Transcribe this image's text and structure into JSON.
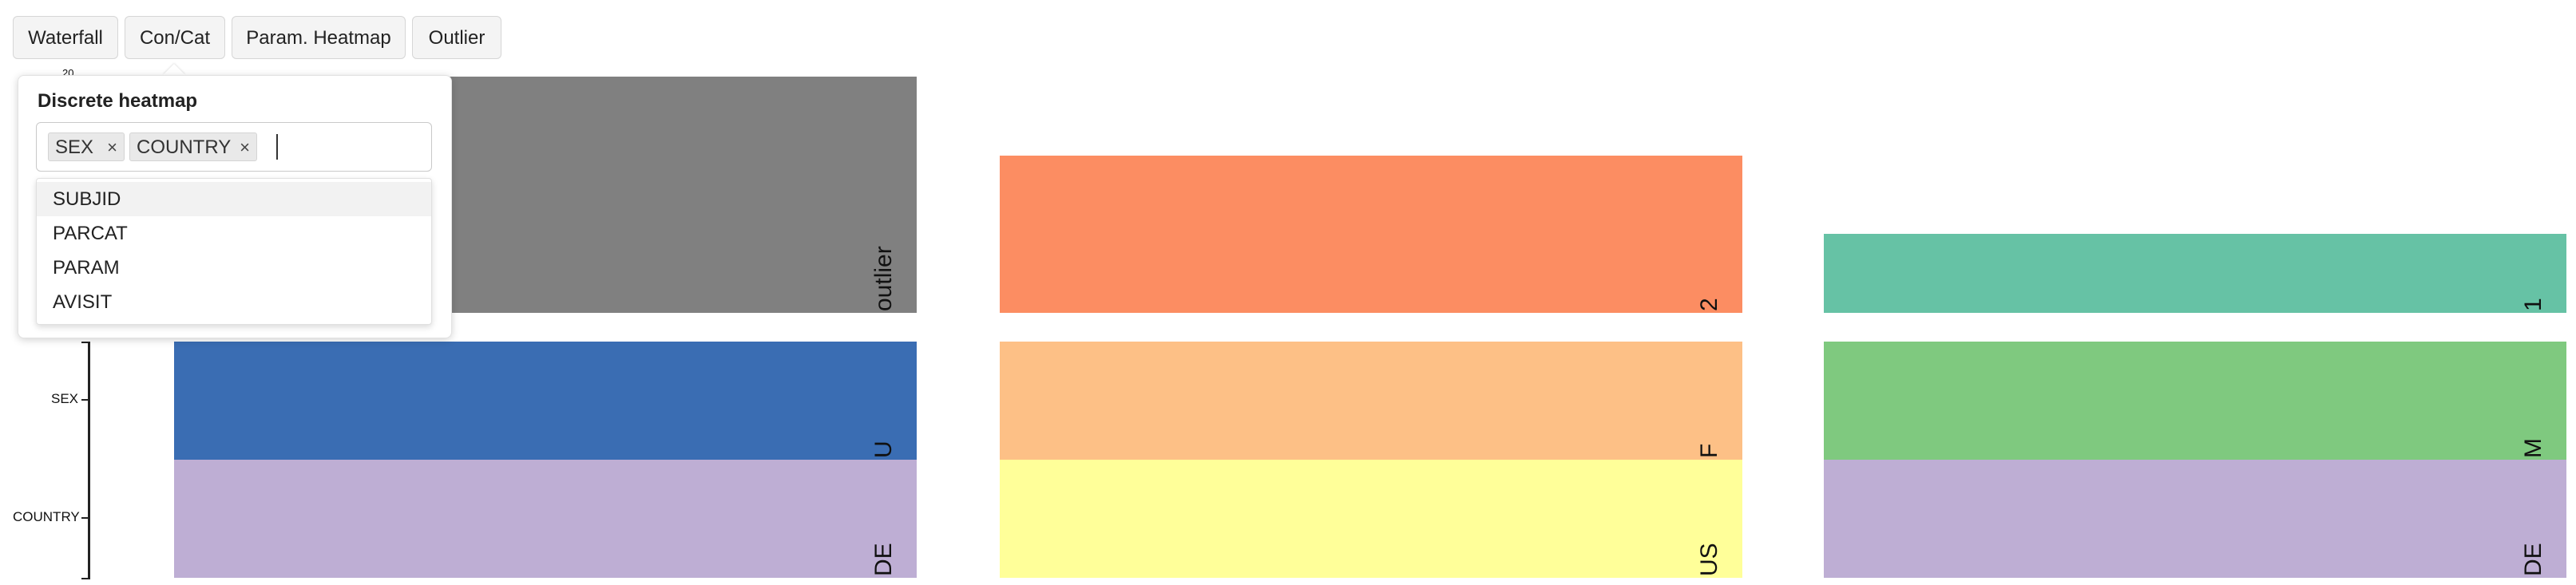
{
  "toolbar": {
    "buttons": [
      "Waterfall",
      "Con/Cat",
      "Param. Heatmap",
      "Outlier"
    ]
  },
  "popover": {
    "title": "Discrete heatmap",
    "selected": [
      "SEX",
      "COUNTRY"
    ],
    "remove_glyph": "×",
    "options": [
      "SUBJID",
      "PARCAT",
      "PARAM",
      "AVISIT"
    ]
  },
  "heatmap": {
    "y_axis": {
      "top_partial_tick": "20",
      "rows": [
        "SEX",
        "COUNTRY"
      ]
    },
    "columns": [
      {
        "top": {
          "label": "outlier",
          "color": "#808080",
          "level": 1.0
        },
        "sex": {
          "label": "U",
          "color": "#3a6db3"
        },
        "country": {
          "label": "DE",
          "color": "#beaed4"
        }
      },
      {
        "top": {
          "label": "2",
          "color": "#fc8d62",
          "level": 0.667
        },
        "sex": {
          "label": "F",
          "color": "#fdc086"
        },
        "country": {
          "label": "US",
          "color": "#ffff99"
        }
      },
      {
        "top": {
          "label": "1",
          "color": "#66c2a5",
          "level": 0.333
        },
        "sex": {
          "label": "M",
          "color": "#7fc97f"
        },
        "country": {
          "label": "DE",
          "color": "#beaed4"
        }
      }
    ]
  }
}
